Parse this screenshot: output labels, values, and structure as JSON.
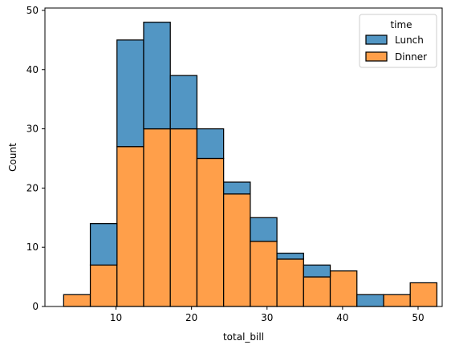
{
  "chart_data": {
    "type": "bar",
    "subtype": "stacked-histogram",
    "title": "",
    "xlabel": "total_bill",
    "ylabel": "Count",
    "xlim": [
      0.59,
      53.19
    ],
    "ylim": [
      0,
      50.4
    ],
    "xticks": [
      10,
      20,
      30,
      40,
      50
    ],
    "yticks": [
      0,
      10,
      20,
      30,
      40,
      50
    ],
    "bin_edges": [
      3.07,
      6.6,
      10.13,
      13.66,
      17.19,
      20.72,
      24.25,
      27.78,
      31.31,
      34.84,
      38.37,
      41.9,
      45.43,
      48.96,
      52.49
    ],
    "series": [
      {
        "name": "Dinner",
        "color": "#ff9f4a",
        "values": [
          2,
          7,
          27,
          30,
          30,
          25,
          19,
          11,
          8,
          5,
          6,
          0,
          2,
          4
        ]
      },
      {
        "name": "Lunch",
        "color": "#5296c4",
        "values": [
          0,
          7,
          18,
          18,
          9,
          5,
          2,
          4,
          1,
          2,
          0,
          2,
          0,
          0
        ]
      }
    ],
    "grid": false,
    "legend": {
      "title": "time",
      "placement": "top-right",
      "entries": [
        "Lunch",
        "Dinner"
      ]
    }
  }
}
